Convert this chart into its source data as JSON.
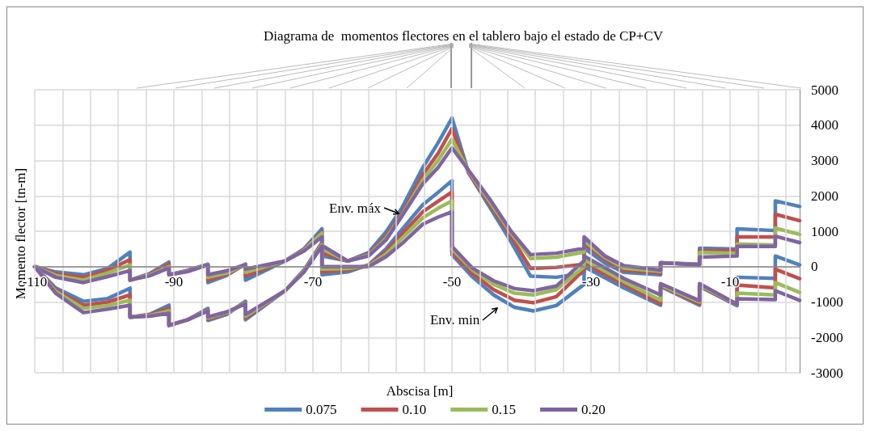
{
  "chart_data": {
    "type": "line",
    "title": "Diagrama de  momentos flectores en el tablero bajo el estado de CP+CV",
    "xlabel": "Abscisa [m]",
    "ylabel": "Momento flector [tn-m]",
    "xlim": [
      -110,
      0
    ],
    "xticks": [
      -110,
      {
        "value": -106,
        "label": null
      },
      {
        "value": -102,
        "label": null
      },
      {
        "value": -98,
        "label": null
      },
      {
        "value": -94,
        "label": null
      },
      -90,
      {
        "value": -86,
        "label": null
      },
      {
        "value": -82,
        "label": null
      },
      {
        "value": -78,
        "label": null
      },
      {
        "value": -74,
        "label": null
      },
      -70,
      {
        "value": -66,
        "label": null
      },
      {
        "value": -62,
        "label": null
      },
      {
        "value": -58,
        "label": null
      },
      {
        "value": -54,
        "label": null
      },
      -50,
      {
        "value": -46,
        "label": null
      },
      {
        "value": -42,
        "label": null
      },
      {
        "value": -38,
        "label": null
      },
      {
        "value": -34,
        "label": null
      },
      -30,
      {
        "value": -26,
        "label": null
      },
      {
        "value": -22,
        "label": null
      },
      {
        "value": -18,
        "label": null
      },
      {
        "value": -14,
        "label": null
      },
      -10,
      {
        "value": -6,
        "label": null
      },
      {
        "value": -2,
        "label": null
      }
    ],
    "ylim": [
      -3000,
      5000
    ],
    "yticks": [
      -3000,
      -2000,
      -1000,
      0,
      1000,
      2000,
      3000,
      4000,
      5000
    ],
    "grid": true,
    "legend": "bottom",
    "marker": "none",
    "line_style": "solid",
    "annotations": [
      {
        "text": "Env. máx",
        "x": -57.2,
        "y": 1430
      },
      {
        "text": "Env. min",
        "x": -43,
        "y": -1100
      }
    ],
    "series": [
      {
        "name": "0.075",
        "color": "#4f81bd",
        "x": [
          -110,
          -107,
          -103,
          -99.5,
          -96.3,
          -96.3,
          -93.5,
          -90.7,
          -90.7,
          -88,
          -85.1,
          -85.1,
          -82.4,
          -79.7,
          -79.7,
          -74,
          -71.3,
          -68.7,
          -68.7,
          -65,
          -62,
          -59.5,
          -57.2,
          -54.2,
          -52,
          -50,
          -47.6,
          -44.5,
          -41.5,
          -38.7,
          -35,
          -31,
          -31,
          -28,
          -25.3,
          -20,
          -20,
          -14.4,
          -14.4,
          -9,
          -9,
          -3.5,
          -3.5,
          0
        ],
        "values": [
          0,
          -150,
          -230,
          -50,
          410,
          -380,
          -200,
          130,
          -230,
          -100,
          70,
          -450,
          -250,
          70,
          -380,
          160,
          500,
          1070,
          300,
          160,
          400,
          980,
          1660,
          2800,
          3500,
          4200,
          2650,
          1660,
          700,
          -270,
          -300,
          -180,
          520,
          100,
          -160,
          -230,
          110,
          70,
          520,
          500,
          1070,
          1020,
          1860,
          1700
        ]
      },
      {
        "name": "0.10",
        "color": "#c0504d",
        "x": [
          -110,
          -107,
          -103,
          -99.5,
          -96.3,
          -96.3,
          -93.5,
          -90.7,
          -90.7,
          -88,
          -85.1,
          -85.1,
          -82.4,
          -79.7,
          -79.7,
          -74,
          -71.3,
          -68.7,
          -68.7,
          -65,
          -62,
          -59.5,
          -57.2,
          -54.2,
          -52,
          -50,
          -47.6,
          -44.5,
          -41.5,
          -38.7,
          -35,
          -31,
          -31,
          -28,
          -25.3,
          -20,
          -20,
          -14.4,
          -14.4,
          -9,
          -9,
          -3.5,
          -3.5,
          0
        ],
        "values": [
          0,
          -200,
          -300,
          -100,
          200,
          -380,
          -220,
          70,
          -230,
          -120,
          50,
          -380,
          -220,
          60,
          -270,
          160,
          480,
          980,
          400,
          160,
          350,
          860,
          1500,
          2600,
          3200,
          3900,
          2650,
          1750,
          850,
          -50,
          -20,
          70,
          640,
          200,
          -100,
          -180,
          110,
          60,
          450,
          450,
          840,
          840,
          1480,
          1300
        ]
      },
      {
        "name": "0.15",
        "color": "#9bbb59",
        "x": [
          -110,
          -107,
          -103,
          -99.5,
          -96.3,
          -96.3,
          -93.5,
          -90.7,
          -90.7,
          -88,
          -85.1,
          -85.1,
          -82.4,
          -79.7,
          -79.7,
          -74,
          -71.3,
          -68.7,
          -68.7,
          -65,
          -62,
          -59.5,
          -57.2,
          -54.2,
          -52,
          -50,
          -47.6,
          -44.5,
          -41.5,
          -38.7,
          -35,
          -31,
          -31,
          -28,
          -25.3,
          -20,
          -20,
          -14.4,
          -14.4,
          -9,
          -9,
          -3.5,
          -3.5,
          0
        ],
        "values": [
          0,
          -250,
          -380,
          -180,
          50,
          -380,
          -240,
          0,
          -230,
          -130,
          50,
          -300,
          -180,
          60,
          -160,
          160,
          460,
          950,
          500,
          160,
          320,
          800,
          1450,
          2450,
          3000,
          3600,
          2700,
          1820,
          950,
          230,
          270,
          410,
          730,
          260,
          -40,
          -130,
          110,
          60,
          400,
          380,
          640,
          610,
          1090,
          910
        ]
      },
      {
        "name": "0.20",
        "color": "#8064a2",
        "x": [
          -110,
          -107,
          -103,
          -99.5,
          -96.3,
          -96.3,
          -93.5,
          -90.7,
          -90.7,
          -88,
          -85.1,
          -85.1,
          -82.4,
          -79.7,
          -79.7,
          -74,
          -71.3,
          -68.7,
          -68.7,
          -65,
          -62,
          -59.5,
          -57.2,
          -54.2,
          -52,
          -50,
          -47.6,
          -44.5,
          -41.5,
          -38.7,
          -35,
          -31,
          -31,
          -28,
          -25.3,
          -20,
          -20,
          -14.4,
          -14.4,
          -9,
          -9,
          -3.5,
          -3.5,
          0
        ],
        "values": [
          0,
          -300,
          -450,
          -280,
          -110,
          -380,
          -260,
          -40,
          -230,
          -140,
          50,
          -230,
          -120,
          60,
          -70,
          160,
          440,
          840,
          600,
          160,
          300,
          750,
          1430,
          2340,
          2800,
          3360,
          2720,
          1890,
          1000,
          340,
          380,
          520,
          840,
          300,
          30,
          -100,
          110,
          50,
          270,
          300,
          570,
          570,
          860,
          680
        ]
      },
      {
        "color": "#4f81bd",
        "x": [
          -110,
          -107,
          -103,
          -99.5,
          -96.3,
          -96.3,
          -93.5,
          -90.7,
          -90.7,
          -88,
          -85.1,
          -85.1,
          -82.4,
          -79.7,
          -79.7,
          -74,
          -71.3,
          -68.7,
          -68.7,
          -65,
          -62,
          -59.5,
          -57.2,
          -54.2,
          -52,
          -50,
          -50,
          -47,
          -44,
          -41,
          -38.3,
          -35,
          -31,
          -31,
          -25.3,
          -20,
          -20,
          -14.4,
          -14.4,
          -9,
          -9,
          -3.5,
          -3.5,
          0
        ],
        "values": [
          0,
          -600,
          -980,
          -900,
          -610,
          -1430,
          -1350,
          -1090,
          -1660,
          -1500,
          -1180,
          -1520,
          -1350,
          -980,
          -1500,
          -680,
          -100,
          680,
          -230,
          -150,
          50,
          500,
          1050,
          1750,
          2100,
          2430,
          340,
          -300,
          -800,
          -1150,
          -1250,
          -1100,
          -500,
          0,
          -600,
          -1090,
          -560,
          -1090,
          -560,
          -1100,
          -300,
          -330,
          300,
          50
        ]
      },
      {
        "color": "#c0504d",
        "x": [
          -110,
          -107,
          -103,
          -99.5,
          -96.3,
          -96.3,
          -93.5,
          -90.7,
          -90.7,
          -88,
          -85.1,
          -85.1,
          -82.4,
          -79.7,
          -79.7,
          -74,
          -71.3,
          -68.7,
          -68.7,
          -65,
          -62,
          -59.5,
          -57.2,
          -54.2,
          -52,
          -50,
          -50,
          -47,
          -44,
          -41,
          -38.3,
          -35,
          -31,
          -31,
          -25.3,
          -20,
          -20,
          -14.4,
          -14.4,
          -9,
          -9,
          -3.5,
          -3.5,
          0
        ],
        "values": [
          0,
          -650,
          -1090,
          -1000,
          -800,
          -1430,
          -1360,
          -1180,
          -1660,
          -1500,
          -1220,
          -1480,
          -1320,
          -1010,
          -1450,
          -680,
          -120,
          650,
          -150,
          -100,
          40,
          420,
          920,
          1550,
          1850,
          2110,
          410,
          -200,
          -650,
          -950,
          -1020,
          -850,
          -90,
          100,
          -500,
          -1040,
          -540,
          -1050,
          -540,
          -1080,
          -520,
          -600,
          -70,
          -340
        ]
      },
      {
        "color": "#9bbb59",
        "x": [
          -110,
          -107,
          -103,
          -99.5,
          -96.3,
          -96.3,
          -93.5,
          -90.7,
          -90.7,
          -88,
          -85.1,
          -85.1,
          -82.4,
          -79.7,
          -79.7,
          -74,
          -71.3,
          -68.7,
          -68.7,
          -65,
          -62,
          -59.5,
          -57.2,
          -54.2,
          -52,
          -50,
          -50,
          -47,
          -44,
          -41,
          -38.3,
          -35,
          -31,
          -31,
          -25.3,
          -20,
          -20,
          -14.4,
          -14.4,
          -9,
          -9,
          -3.5,
          -3.5,
          0
        ],
        "values": [
          0,
          -700,
          -1180,
          -1100,
          -950,
          -1430,
          -1380,
          -1250,
          -1660,
          -1500,
          -1240,
          -1450,
          -1300,
          -1030,
          -1400,
          -680,
          -140,
          620,
          -70,
          -50,
          20,
          350,
          800,
          1380,
          1650,
          1860,
          500,
          -100,
          -500,
          -750,
          -800,
          -650,
          0,
          200,
          -420,
          -950,
          -520,
          -1000,
          -520,
          -1060,
          -750,
          -800,
          -450,
          -730
        ]
      },
      {
        "color": "#8064a2",
        "x": [
          -110,
          -107,
          -103,
          -99.5,
          -96.3,
          -96.3,
          -93.5,
          -90.7,
          -90.7,
          -88,
          -85.1,
          -85.1,
          -82.4,
          -79.7,
          -79.7,
          -74,
          -71.3,
          -68.7,
          -68.7,
          -65,
          -62,
          -59.5,
          -57.2,
          -54.2,
          -52,
          -50,
          -50,
          -47,
          -44,
          -41,
          -38.3,
          -35,
          -31,
          -31,
          -25.3,
          -20,
          -20,
          -14.4,
          -14.4,
          -9,
          -9,
          -3.5,
          -3.5,
          0
        ],
        "values": [
          0,
          -750,
          -1300,
          -1200,
          -1090,
          -1430,
          -1400,
          -1320,
          -1660,
          -1500,
          -1250,
          -1420,
          -1280,
          -1050,
          -1350,
          -680,
          -160,
          580,
          0,
          0,
          0,
          280,
          650,
          1200,
          1400,
          1550,
          570,
          -50,
          -400,
          -620,
          -680,
          -550,
          170,
          300,
          -330,
          -800,
          -480,
          -960,
          -480,
          -1060,
          -910,
          -930,
          -680,
          -950
        ]
      }
    ]
  }
}
